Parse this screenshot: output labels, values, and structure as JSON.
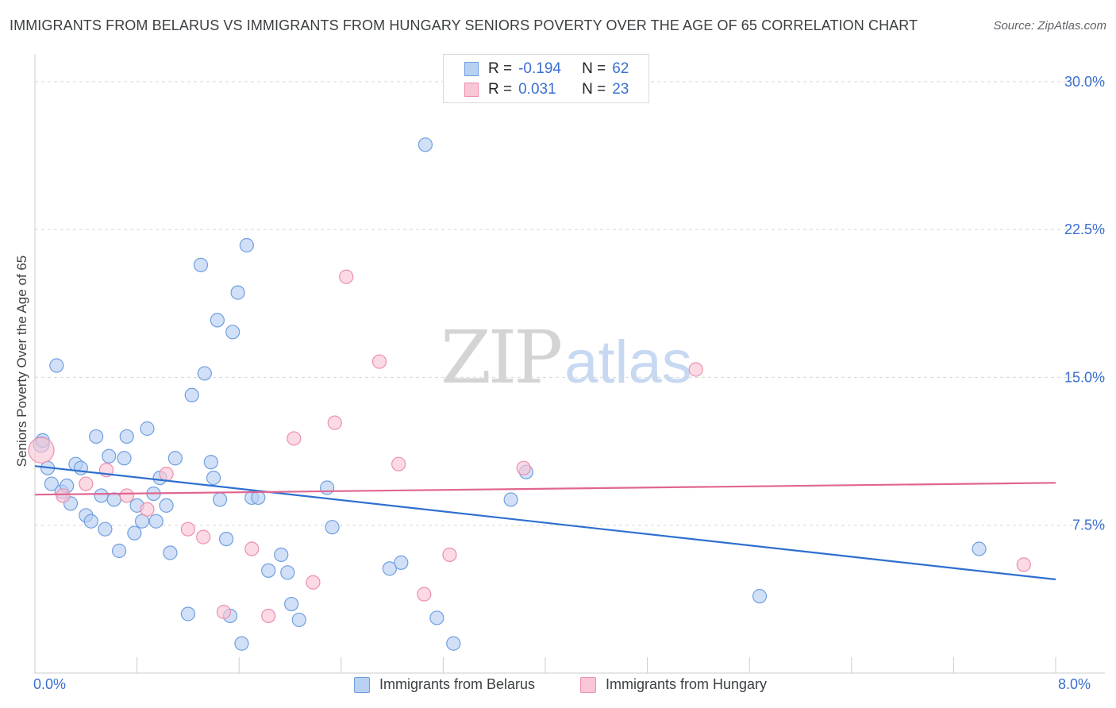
{
  "title": "IMMIGRANTS FROM BELARUS VS IMMIGRANTS FROM HUNGARY SENIORS POVERTY OVER THE AGE OF 65 CORRELATION CHART",
  "source": "Source: ZipAtlas.com",
  "watermark": {
    "part1": "ZIP",
    "part2": "atlas"
  },
  "legend_top": {
    "rows": [
      {
        "r_label": "R =",
        "r_value": "-0.194",
        "n_label": "N =",
        "n_value": "62"
      },
      {
        "r_label": "R =",
        "r_value": "0.031",
        "n_label": "N =",
        "n_value": "23"
      }
    ]
  },
  "chart_data": {
    "type": "scatter",
    "title": "IMMIGRANTS FROM BELARUS VS IMMIGRANTS FROM HUNGARY SENIORS POVERTY OVER THE AGE OF 65 CORRELATION CHART",
    "xlabel": "",
    "ylabel": "Seniors Poverty Over the Age of 65",
    "xlim": [
      0,
      8.0
    ],
    "ylim": [
      0,
      31.0
    ],
    "x_tick_labels": [
      "0.0%",
      "8.0%"
    ],
    "y_ticks": [
      7.5,
      15.0,
      22.5,
      30.0
    ],
    "y_tick_labels": [
      "7.5%",
      "15.0%",
      "22.5%",
      "30.0%"
    ],
    "grid": "horizontal dashed",
    "legend_position": "bottom",
    "colors": {
      "belarus_fill": "#b8d0f2",
      "belarus_stroke": "#6f9fe0",
      "belarus_line": "#2e6fd0",
      "hungary_fill": "#f9c6d6",
      "hungary_stroke": "#ec8fae",
      "hungary_line": "#e06690",
      "tick_label": "#3a6fd0"
    },
    "series": [
      {
        "name": "Immigrants from Belarus",
        "r": -0.194,
        "n": 62,
        "trend": {
          "x": [
            0.0,
            8.0
          ],
          "y": [
            10.5,
            4.75
          ]
        },
        "points": [
          [
            0.05,
            11.6
          ],
          [
            0.06,
            11.8
          ],
          [
            0.1,
            10.4
          ],
          [
            0.13,
            9.6
          ],
          [
            0.17,
            15.6
          ],
          [
            0.21,
            9.2
          ],
          [
            0.25,
            9.5
          ],
          [
            0.28,
            8.6
          ],
          [
            0.32,
            10.6
          ],
          [
            0.36,
            10.4
          ],
          [
            0.4,
            8.0
          ],
          [
            0.44,
            7.7
          ],
          [
            0.48,
            12.0
          ],
          [
            0.52,
            9.0
          ],
          [
            0.55,
            7.3
          ],
          [
            0.58,
            11.0
          ],
          [
            0.62,
            8.8
          ],
          [
            0.66,
            6.2
          ],
          [
            0.7,
            10.9
          ],
          [
            0.72,
            12.0
          ],
          [
            0.78,
            7.1
          ],
          [
            0.8,
            8.5
          ],
          [
            0.84,
            7.7
          ],
          [
            0.88,
            12.4
          ],
          [
            0.93,
            9.1
          ],
          [
            0.95,
            7.7
          ],
          [
            0.98,
            9.9
          ],
          [
            1.03,
            8.5
          ],
          [
            1.06,
            6.1
          ],
          [
            1.1,
            10.9
          ],
          [
            1.2,
            3.0
          ],
          [
            1.23,
            14.1
          ],
          [
            1.3,
            20.7
          ],
          [
            1.33,
            15.2
          ],
          [
            1.38,
            10.7
          ],
          [
            1.4,
            9.9
          ],
          [
            1.43,
            17.9
          ],
          [
            1.45,
            8.8
          ],
          [
            1.5,
            6.8
          ],
          [
            1.53,
            2.9
          ],
          [
            1.55,
            17.3
          ],
          [
            1.59,
            19.3
          ],
          [
            1.62,
            1.5
          ],
          [
            1.66,
            21.7
          ],
          [
            1.7,
            8.9
          ],
          [
            1.75,
            8.9
          ],
          [
            1.83,
            5.2
          ],
          [
            1.93,
            6.0
          ],
          [
            1.98,
            5.1
          ],
          [
            2.01,
            3.5
          ],
          [
            2.07,
            2.7
          ],
          [
            2.29,
            9.4
          ],
          [
            2.33,
            7.4
          ],
          [
            2.78,
            5.3
          ],
          [
            2.87,
            5.6
          ],
          [
            3.06,
            26.8
          ],
          [
            3.15,
            2.8
          ],
          [
            3.28,
            1.5
          ],
          [
            3.73,
            8.8
          ],
          [
            3.85,
            10.2
          ],
          [
            5.68,
            3.9
          ],
          [
            7.4,
            6.3
          ]
        ]
      },
      {
        "name": "Immigrants from Hungary",
        "r": 0.031,
        "n": 23,
        "trend": {
          "x": [
            0.0,
            8.0
          ],
          "y": [
            9.05,
            9.65
          ]
        },
        "points": [
          [
            0.05,
            11.3
          ],
          [
            0.22,
            9.0
          ],
          [
            0.4,
            9.6
          ],
          [
            0.56,
            10.3
          ],
          [
            0.72,
            9.0
          ],
          [
            0.88,
            8.3
          ],
          [
            1.03,
            10.1
          ],
          [
            1.2,
            7.3
          ],
          [
            1.32,
            6.9
          ],
          [
            1.48,
            3.1
          ],
          [
            1.7,
            6.3
          ],
          [
            1.83,
            2.9
          ],
          [
            2.03,
            11.9
          ],
          [
            2.18,
            4.6
          ],
          [
            2.35,
            12.7
          ],
          [
            2.44,
            20.1
          ],
          [
            2.7,
            15.8
          ],
          [
            2.85,
            10.6
          ],
          [
            3.05,
            4.0
          ],
          [
            3.25,
            6.0
          ],
          [
            3.83,
            10.4
          ],
          [
            5.18,
            15.4
          ],
          [
            7.75,
            5.5
          ]
        ]
      }
    ]
  }
}
